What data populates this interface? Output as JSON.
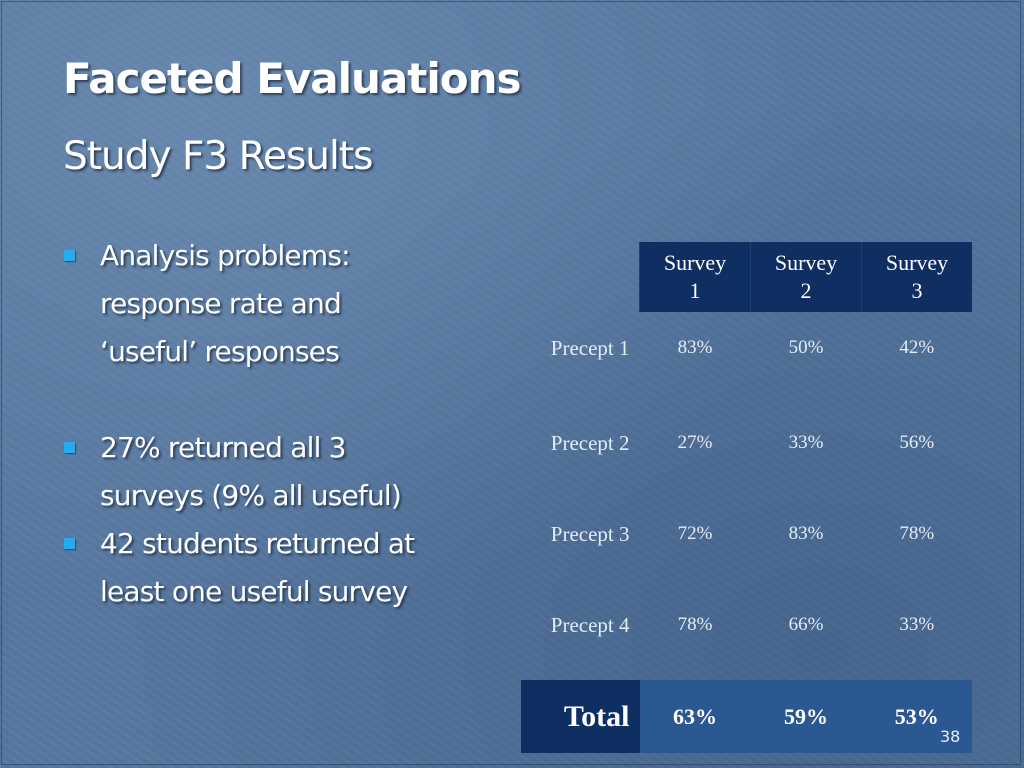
{
  "slide": {
    "title": "Faceted Evaluations",
    "subtitle": "Study F3 Results",
    "slide_number": "38"
  },
  "bullets": [
    {
      "lines": [
        "Analysis problems:",
        "response rate and",
        "‘useful’ responses"
      ]
    },
    {
      "lines": [
        "27% returned all 3",
        "surveys (9% all useful)"
      ]
    },
    {
      "lines": [
        "42 students returned at",
        "least one useful survey"
      ]
    }
  ],
  "table": {
    "columns": [
      {
        "line1": "Survey",
        "line2": "1"
      },
      {
        "line1": "Survey",
        "line2": "2"
      },
      {
        "line1": "Survey",
        "line2": "3"
      }
    ],
    "rows": [
      {
        "label": "Precept 1",
        "values": [
          "83%",
          "50%",
          "42%"
        ]
      },
      {
        "label": "Precept 2",
        "values": [
          "27%",
          "33%",
          "56%"
        ]
      },
      {
        "label": "Precept 3",
        "values": [
          "72%",
          "83%",
          "78%"
        ]
      },
      {
        "label": "Precept 4",
        "values": [
          "78%",
          "66%",
          "33%"
        ]
      }
    ],
    "total": {
      "label": "Total",
      "values": [
        "63%",
        "59%",
        "53%"
      ]
    }
  },
  "colors": {
    "background": "#56769e",
    "bullet": "#29a9ee",
    "header_fill": "#0f2e62",
    "total_fill": "#2c5892"
  }
}
